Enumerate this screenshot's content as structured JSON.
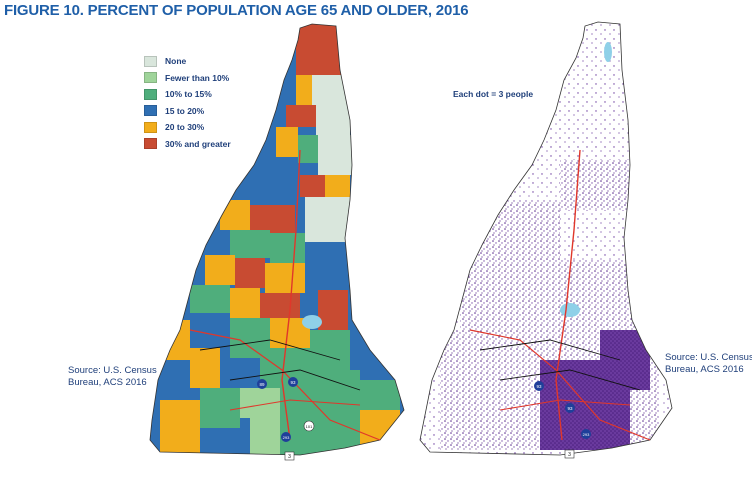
{
  "figure": {
    "number": "FIGURE 10.",
    "title": "PERCENT OF POPULATION AGE 65 AND OLDER, 2016"
  },
  "left_map": {
    "legend": [
      {
        "label": "None",
        "color": "#d9e6dc"
      },
      {
        "label": "Fewer than 10%",
        "color": "#9fd49a"
      },
      {
        "label": "10% to 15%",
        "color": "#4fae7c"
      },
      {
        "label": "15 to 20%",
        "color": "#2f6fb3"
      },
      {
        "label": "20 to 30%",
        "color": "#f2ad1b"
      },
      {
        "label": "30% and greater",
        "color": "#c84b32"
      }
    ],
    "source": [
      "Source: U.S. Census",
      "Bureau, ACS 2016"
    ]
  },
  "right_map": {
    "note": "Each dot = 3 people",
    "dot_color": "#5b2d8e",
    "source": [
      "Source: U.S. Census",
      "Bureau, ACS 2016"
    ]
  },
  "highway_labels": [
    "93",
    "89",
    "93",
    "293",
    "101",
    "3"
  ],
  "colors": {
    "title": "#1f5fa8",
    "roads": "#e0372b",
    "water": "#8fd0e8"
  }
}
